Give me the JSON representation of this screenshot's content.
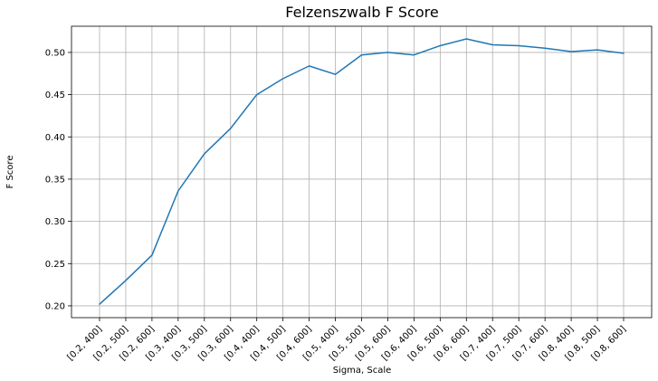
{
  "chart_data": {
    "type": "line",
    "title": "Felzenszwalb F Score",
    "xlabel": "Sigma, Scale",
    "ylabel": "F Score",
    "categories": [
      "[0.2, 400]",
      "[0.2, 500]",
      "[0.2, 600]",
      "[0.3, 400]",
      "[0.3, 500]",
      "[0.3, 600]",
      "[0.4, 400]",
      "[0.4, 500]",
      "[0.4, 600]",
      "[0.5, 400]",
      "[0.5, 500]",
      "[0.5, 600]",
      "[0.6, 400]",
      "[0.6, 500]",
      "[0.6, 600]",
      "[0.7, 400]",
      "[0.7, 500]",
      "[0.7, 600]",
      "[0.8, 400]",
      "[0.8, 500]",
      "[0.8, 600]"
    ],
    "series": [
      {
        "values": [
          0.202,
          0.23,
          0.26,
          0.336,
          0.38,
          0.41,
          0.45,
          0.469,
          0.484,
          0.474,
          0.497,
          0.5,
          0.497,
          0.508,
          0.516,
          0.509,
          0.508,
          0.505,
          0.501,
          0.503,
          0.499
        ],
        "color": "#1f77b4"
      }
    ],
    "yticks": [
      0.2,
      0.25,
      0.3,
      0.35,
      0.4,
      0.45,
      0.5
    ],
    "ytick_labels": [
      "0.20",
      "0.25",
      "0.30",
      "0.35",
      "0.40",
      "0.45",
      "0.50"
    ],
    "ylim": [
      0.186,
      0.531
    ],
    "grid": true
  }
}
